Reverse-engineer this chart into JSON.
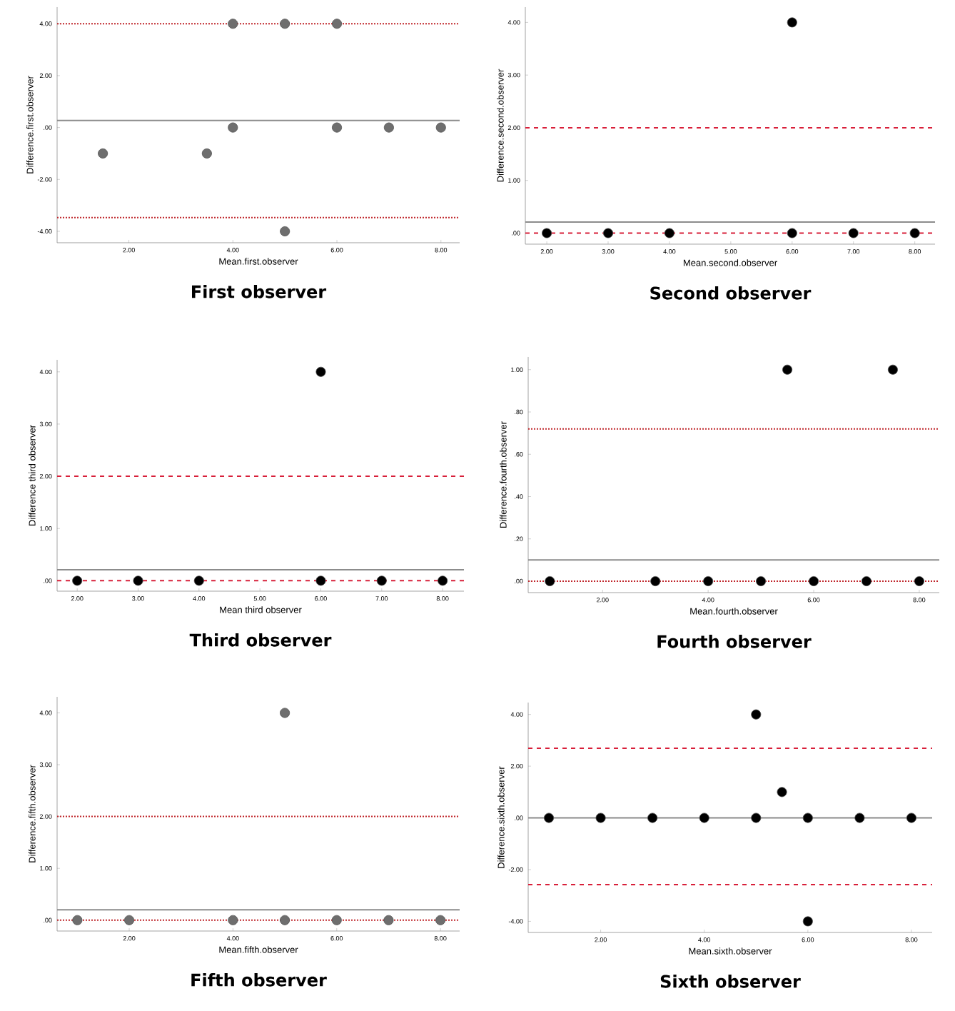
{
  "chart_data": [
    {
      "type": "scatter",
      "title": "First observer",
      "xlabel": "Mean.first.observer",
      "ylabel": "Difference.first.observer",
      "marker": "circle",
      "color": "#6e6e6e",
      "x": [
        1.5,
        3.5,
        4,
        4,
        5,
        5,
        6,
        6,
        7,
        8
      ],
      "values": [
        -1,
        -1,
        4,
        0,
        4,
        -4,
        4,
        0,
        0,
        0
      ],
      "xlim": [
        0.62,
        8.36
      ],
      "ylim": [
        -4.44,
        4.64
      ],
      "xticks": [
        {
          "value": 2,
          "label": "2.00"
        },
        {
          "value": 4,
          "label": "4.00"
        },
        {
          "value": 6,
          "label": "6.00"
        },
        {
          "value": 8,
          "label": "8.00"
        }
      ],
      "yticks": [
        {
          "value": -4,
          "label": "-4.00"
        },
        {
          "value": -2,
          "label": "-2.00"
        },
        {
          "value": 0,
          "label": ".00"
        },
        {
          "value": 2,
          "label": "2.00"
        },
        {
          "value": 4,
          "label": "4.00"
        }
      ],
      "ref_lines": [
        {
          "axis": "y",
          "value": 4.0,
          "color": "#c0282d",
          "line_style": "dotted"
        },
        {
          "axis": "y",
          "value": 0.27,
          "color": "#8c8c8c",
          "line_style": "solid"
        },
        {
          "axis": "y",
          "value": -3.47,
          "color": "#c0282d",
          "line_style": "dotted"
        }
      ]
    },
    {
      "type": "scatter",
      "title": "Second observer",
      "xlabel": "Mean.second.observer",
      "ylabel": "Difference.second.observer",
      "marker": "circle",
      "color": "#000000",
      "x": [
        2,
        3,
        4,
        6,
        6,
        7,
        8
      ],
      "values": [
        0,
        0,
        0,
        0,
        4,
        0,
        0
      ],
      "xlim": [
        1.65,
        8.33
      ],
      "ylim": [
        -0.21,
        4.29
      ],
      "xticks": [
        {
          "value": 2,
          "label": "2.00"
        },
        {
          "value": 3,
          "label": "3.00"
        },
        {
          "value": 4,
          "label": "4.00"
        },
        {
          "value": 5,
          "label": "5.00"
        },
        {
          "value": 6,
          "label": "6.00"
        },
        {
          "value": 7,
          "label": "7.00"
        },
        {
          "value": 8,
          "label": "8.00"
        }
      ],
      "yticks": [
        {
          "value": 0,
          "label": ".00"
        },
        {
          "value": 1,
          "label": "1.00"
        },
        {
          "value": 2,
          "label": "2.00"
        },
        {
          "value": 3,
          "label": "3.00"
        },
        {
          "value": 4,
          "label": "4.00"
        }
      ],
      "ref_lines": [
        {
          "axis": "y",
          "value": 2.0,
          "color": "#d8203a",
          "line_style": "dashed"
        },
        {
          "axis": "y",
          "value": 0.21,
          "color": "#8c8c8c",
          "line_style": "solid"
        },
        {
          "axis": "y",
          "value": 0.0,
          "color": "#d8203a",
          "line_style": "dashed"
        }
      ]
    },
    {
      "type": "scatter",
      "title": "Third observer",
      "xlabel": "Mean third observer",
      "ylabel": "Difference third observer",
      "marker": "circle",
      "color": "#000000",
      "x": [
        2,
        3,
        4,
        6,
        6,
        7,
        8
      ],
      "values": [
        0,
        0,
        0,
        0,
        4,
        0,
        0
      ],
      "xlim": [
        1.67,
        8.35
      ],
      "ylim": [
        -0.2,
        4.23
      ],
      "xticks": [
        {
          "value": 2,
          "label": "2.00"
        },
        {
          "value": 3,
          "label": "3.00"
        },
        {
          "value": 4,
          "label": "4.00"
        },
        {
          "value": 5,
          "label": "5.00"
        },
        {
          "value": 6,
          "label": "6.00"
        },
        {
          "value": 7,
          "label": "7.00"
        },
        {
          "value": 8,
          "label": "8.00"
        }
      ],
      "yticks": [
        {
          "value": 0,
          "label": ".00"
        },
        {
          "value": 1,
          "label": "1.00"
        },
        {
          "value": 2,
          "label": "2.00"
        },
        {
          "value": 3,
          "label": "3.00"
        },
        {
          "value": 4,
          "label": "4.00"
        }
      ],
      "ref_lines": [
        {
          "axis": "y",
          "value": 2.0,
          "color": "#d8203a",
          "line_style": "dashed"
        },
        {
          "axis": "y",
          "value": 0.21,
          "color": "#8c8c8c",
          "line_style": "solid"
        },
        {
          "axis": "y",
          "value": 0.0,
          "color": "#d8203a",
          "line_style": "dashed"
        }
      ]
    },
    {
      "type": "scatter",
      "title": "Fourth observer",
      "xlabel": "Mean.fourth.observer",
      "ylabel": "Difference.fourth.observer",
      "marker": "circle",
      "color": "#000000",
      "x": [
        1,
        3,
        4,
        5,
        5.5,
        6,
        7,
        7.5,
        8
      ],
      "values": [
        0,
        0,
        0,
        0,
        1,
        0,
        0,
        1,
        0
      ],
      "xlim": [
        0.59,
        8.38
      ],
      "ylim": [
        -0.054,
        1.06
      ],
      "xticks": [
        {
          "value": 2,
          "label": "2.00"
        },
        {
          "value": 4,
          "label": "4.00"
        },
        {
          "value": 6,
          "label": "6.00"
        },
        {
          "value": 8,
          "label": "8.00"
        }
      ],
      "yticks": [
        {
          "value": 0,
          "label": ".00"
        },
        {
          "value": 0.2,
          "label": ".20"
        },
        {
          "value": 0.4,
          "label": ".40"
        },
        {
          "value": 0.6,
          "label": ".60"
        },
        {
          "value": 0.8,
          "label": ".80"
        },
        {
          "value": 1,
          "label": "1.00"
        }
      ],
      "ref_lines": [
        {
          "axis": "y",
          "value": 0.72,
          "color": "#c0282d",
          "line_style": "dotted"
        },
        {
          "axis": "y",
          "value": 0.1,
          "color": "#8c8c8c",
          "line_style": "solid"
        },
        {
          "axis": "y",
          "value": 0.0,
          "color": "#c0282d",
          "line_style": "dotted"
        }
      ]
    },
    {
      "type": "scatter",
      "title": "Fifth observer",
      "xlabel": "Mean.fifth.observer",
      "ylabel": "Difference.fifth.observer",
      "marker": "circle",
      "color": "#6e6e6e",
      "x": [
        1,
        2,
        4,
        5,
        5,
        6,
        7,
        8
      ],
      "values": [
        0,
        0,
        0,
        0,
        4,
        0,
        0,
        0
      ],
      "xlim": [
        0.61,
        8.37
      ],
      "ylim": [
        -0.21,
        4.31
      ],
      "xticks": [
        {
          "value": 2,
          "label": "2.00"
        },
        {
          "value": 4,
          "label": "4.00"
        },
        {
          "value": 6,
          "label": "6.00"
        },
        {
          "value": 8,
          "label": "8.00"
        }
      ],
      "yticks": [
        {
          "value": 0,
          "label": ".00"
        },
        {
          "value": 1,
          "label": "1.00"
        },
        {
          "value": 2,
          "label": "2.00"
        },
        {
          "value": 3,
          "label": "3.00"
        },
        {
          "value": 4,
          "label": "4.00"
        }
      ],
      "ref_lines": [
        {
          "axis": "y",
          "value": 2.0,
          "color": "#c0282d",
          "line_style": "dotted"
        },
        {
          "axis": "y",
          "value": 0.2,
          "color": "#8c8c8c",
          "line_style": "solid"
        },
        {
          "axis": "y",
          "value": 0.0,
          "color": "#c0282d",
          "line_style": "dotted"
        }
      ]
    },
    {
      "type": "scatter",
      "title": "Sixth observer",
      "xlabel": "Mean.sixth.observer",
      "ylabel": "Difference.sixth.observer",
      "marker": "circle",
      "color": "#000000",
      "x": [
        1,
        2,
        3,
        4,
        5,
        5,
        5.5,
        6,
        6,
        7,
        8
      ],
      "values": [
        0,
        0,
        0,
        0,
        0,
        4,
        1,
        0,
        -4,
        0,
        0
      ],
      "xlim": [
        0.6,
        8.4
      ],
      "ylim": [
        -4.43,
        4.46
      ],
      "xticks": [
        {
          "value": 2,
          "label": "2.00"
        },
        {
          "value": 4,
          "label": "4.00"
        },
        {
          "value": 6,
          "label": "6.00"
        },
        {
          "value": 8,
          "label": "8.00"
        }
      ],
      "yticks": [
        {
          "value": -4,
          "label": "-4.00"
        },
        {
          "value": -2,
          "label": "-2.00"
        },
        {
          "value": 0,
          "label": ".00"
        },
        {
          "value": 2,
          "label": "2.00"
        },
        {
          "value": 4,
          "label": "4.00"
        }
      ],
      "ref_lines": [
        {
          "axis": "y",
          "value": 2.69,
          "color": "#d8203a",
          "line_style": "dashed"
        },
        {
          "axis": "y",
          "value": 0.0,
          "color": "#8c8c8c",
          "line_style": "solid"
        },
        {
          "axis": "y",
          "value": -2.58,
          "color": "#d8203a",
          "line_style": "dashed"
        }
      ]
    }
  ]
}
